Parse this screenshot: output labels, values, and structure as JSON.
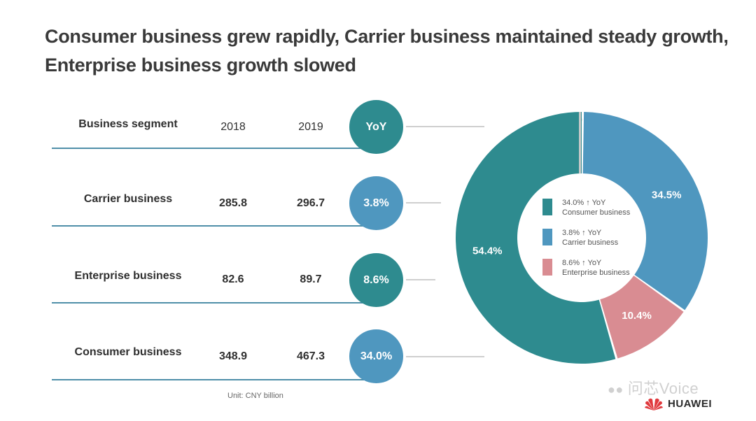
{
  "title": {
    "line1": "Consumer business grew rapidly, Carrier business maintained steady growth,",
    "line2": "Enterprise business growth slowed"
  },
  "table": {
    "headers": {
      "segment": "Business segment",
      "y2018": "2018",
      "y2019": "2019",
      "yoy": "YoY"
    },
    "rows": [
      {
        "segment": "Carrier business",
        "y2018": "285.8",
        "y2019": "296.7",
        "yoy": "3.8%"
      },
      {
        "segment": "Enterprise business",
        "y2018": "82.6",
        "y2019": "89.7",
        "yoy": "8.6%"
      },
      {
        "segment": "Consumer business",
        "y2018": "348.9",
        "y2019": "467.3",
        "yoy": "34.0%"
      }
    ],
    "unit": "Unit: CNY billion"
  },
  "colors": {
    "consumer": "#2e8b8f",
    "carrier": "#4f97bf",
    "enterprise": "#d98c92",
    "header_bubble": "#2e8b8f",
    "arc": "#cfcfcf"
  },
  "chart_data": {
    "type": "pie",
    "variant": "donut",
    "slices": [
      {
        "name": "Carrier business",
        "value": 34.5,
        "label": "34.5%",
        "color": "#4f97bf"
      },
      {
        "name": "Enterprise business",
        "value": 10.4,
        "label": "10.4%",
        "color": "#d98c92"
      },
      {
        "name": "Consumer business",
        "value": 54.4,
        "label": "54.4%",
        "color": "#2e8b8f"
      }
    ],
    "legend": [
      {
        "line1": "34.0% ↑ YoY",
        "line2": "Consumer business",
        "color": "#2e8b8f"
      },
      {
        "line1": "3.8% ↑ YoY",
        "line2": "Carrier business",
        "color": "#4f97bf"
      },
      {
        "line1": "8.6% ↑ YoY",
        "line2": "Enterprise business",
        "color": "#d98c92"
      }
    ],
    "legend_placement": "center"
  },
  "watermark": {
    "text": "问芯Voice",
    "icon": "wechat-icon"
  },
  "brand": {
    "text": "HUAWEI",
    "icon": "huawei-logo"
  }
}
